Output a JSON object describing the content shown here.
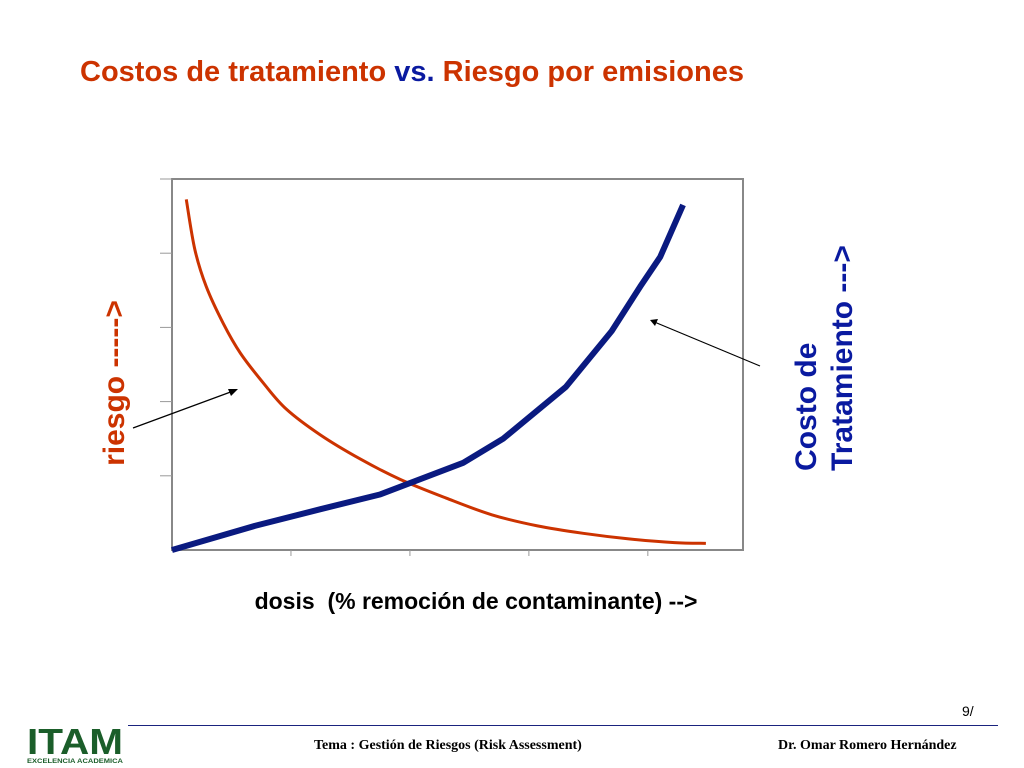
{
  "slide": {
    "title_part1": "Costos de tratamiento",
    "title_part2": "vs.",
    "title_part3": "Riesgo por emisiones",
    "page_number": "9/",
    "footer_topic": "Tema : Gestión de Riesgos (Risk Assessment)",
    "footer_author": "Dr. Omar Romero Hernández",
    "logo_text": "ITAM",
    "logo_tagline": "EXCELENCIA ACADEMICA"
  },
  "colors": {
    "title_red": "#cc3300",
    "title_blue": "#0a1aa0",
    "risk_curve": "#cc3300",
    "cost_curve": "#0a1a80",
    "frame": "#888888"
  },
  "chart_data": {
    "type": "line",
    "xlabel": "dosis  (% remoción de contaminante) -->",
    "ylabel_left": "riesgo  ----->",
    "ylabel_right_line1": "Costo de",
    "ylabel_right_line2": "Tratamiento --->",
    "xlim": [
      0,
      100
    ],
    "ylim": [
      0,
      100
    ],
    "grid": false,
    "series": [
      {
        "key": "riesgo",
        "x": [
          2.5,
          4,
          6,
          9,
          12,
          16,
          20,
          26,
          33,
          40,
          48,
          56,
          64,
          72,
          80,
          88,
          93.5
        ],
        "y": [
          94.5,
          81,
          71,
          61,
          53,
          45,
          38,
          31,
          24.5,
          19,
          14,
          9.5,
          6.5,
          4.5,
          3,
          2,
          1.8
        ]
      },
      {
        "key": "costo",
        "x": [
          0,
          14.5,
          26,
          36.5,
          51,
          58,
          69,
          77,
          82,
          85.5,
          89.5
        ],
        "y": [
          0,
          6.5,
          11,
          15,
          23.5,
          30,
          44,
          59,
          71,
          79,
          93
        ]
      }
    ]
  }
}
